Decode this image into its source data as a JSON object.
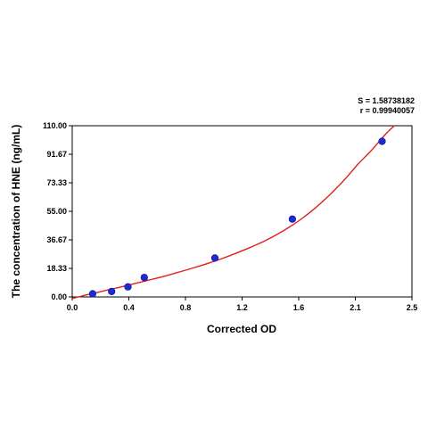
{
  "chart_data": {
    "type": "scatter",
    "xlabel": "Corrected OD",
    "ylabel": "The concentration of HNE (ng/mL)",
    "xlim": [
      0,
      2.5
    ],
    "ylim": [
      0,
      110
    ],
    "x_ticks": [
      "0.0",
      "0.4",
      "0.8",
      "1.2",
      "1.6",
      "2.1",
      "2.5"
    ],
    "y_ticks": [
      "0.00",
      "18.33",
      "36.67",
      "55.00",
      "73.33",
      "91.67",
      "110.00"
    ],
    "stats": {
      "s": "S = 1.58738182",
      "r": "r = 0.99940057"
    },
    "series": [
      {
        "points": [
          {
            "x": 0.15,
            "y": 2.0
          },
          {
            "x": 0.29,
            "y": 3.5
          },
          {
            "x": 0.41,
            "y": 6.5
          },
          {
            "x": 0.53,
            "y": 12.5
          },
          {
            "x": 1.05,
            "y": 25.0
          },
          {
            "x": 1.62,
            "y": 50.0
          },
          {
            "x": 2.28,
            "y": 100.0
          }
        ],
        "color": "#1c2bd6"
      }
    ],
    "fit_curve": {
      "color": "#e0201e",
      "x": [
        0.0,
        0.1,
        0.2,
        0.3,
        0.4,
        0.5,
        0.6,
        0.7,
        0.8,
        0.9,
        1.0,
        1.1,
        1.2,
        1.3,
        1.4,
        1.5,
        1.6,
        1.7,
        1.8,
        1.9,
        2.0,
        2.1,
        2.2,
        2.3,
        2.37
      ],
      "y": [
        -1.0,
        1.2,
        3.2,
        5.2,
        7.3,
        9.4,
        11.6,
        13.8,
        16.3,
        18.9,
        21.6,
        24.6,
        27.9,
        31.4,
        35.3,
        39.8,
        45.0,
        51.0,
        58.0,
        66.0,
        75.0,
        85.0,
        94.0,
        104.0,
        110.0
      ]
    }
  }
}
